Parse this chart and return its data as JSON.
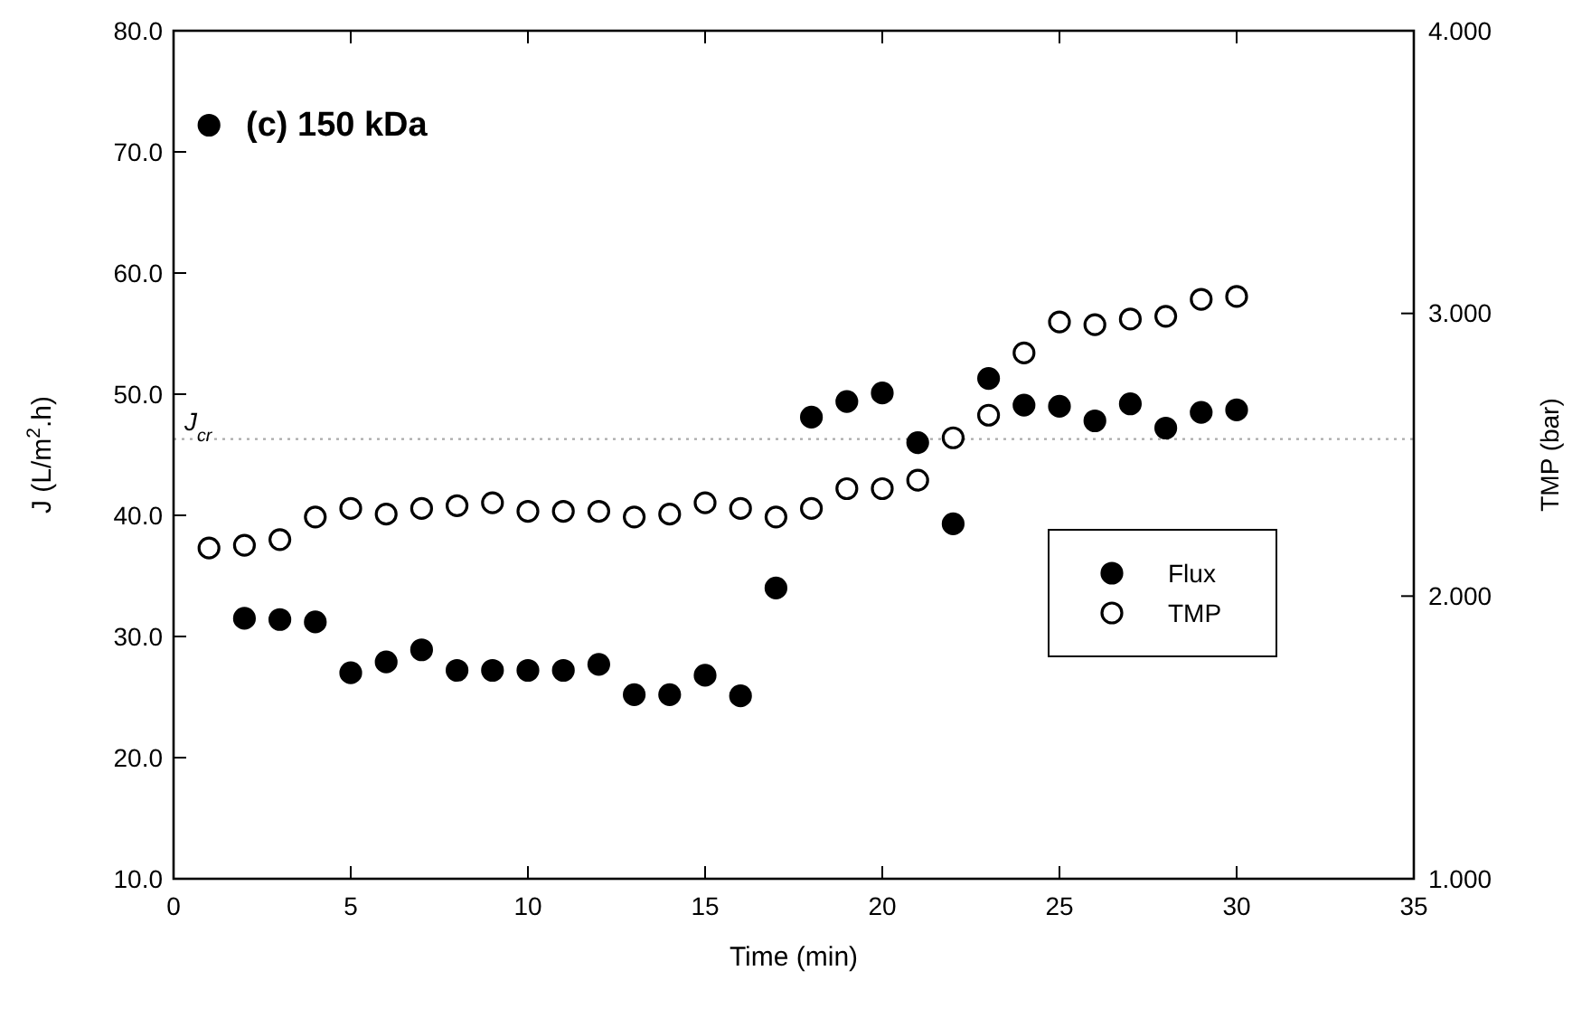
{
  "chart_data": {
    "type": "scatter",
    "xlabel": "Time (min)",
    "ylabel": "J (L/m$^{2}$.h)",
    "y2label": "TMP (bar)",
    "annotations": [
      "(c) 150 kDa"
    ],
    "x": [
      1,
      2,
      3,
      4,
      5,
      6,
      7,
      8,
      9,
      10,
      11,
      12,
      13,
      14,
      15,
      16,
      17,
      18,
      19,
      20,
      21,
      22,
      23,
      24,
      25,
      26,
      27,
      28,
      29,
      30
    ],
    "series": [
      {
        "name": "Flux",
        "color": "#000000",
        "values": [
          72.2,
          31.5,
          31.4,
          31.2,
          27.0,
          27.9,
          28.9,
          27.2,
          27.2,
          27.2,
          27.2,
          27.7,
          25.2,
          25.2,
          26.8,
          25.1,
          34.0,
          48.1,
          49.4,
          50.1,
          46.0,
          39.3,
          51.3,
          49.1,
          49.0,
          47.8,
          49.2,
          47.2,
          48.5,
          48.7
        ]
      },
      {
        "name": "TMP",
        "color": "#ffffff",
        "axis": "y2",
        "values": [
          2.17,
          2.18,
          2.2,
          2.28,
          2.31,
          2.29,
          2.31,
          2.32,
          2.33,
          2.3,
          2.3,
          2.3,
          2.28,
          2.29,
          2.33,
          2.31,
          2.28,
          2.31,
          2.38,
          2.38,
          2.41,
          2.56,
          2.64,
          2.86,
          2.97,
          2.96,
          2.98,
          2.99,
          3.05,
          3.06
        ]
      }
    ],
    "xlim": [
      0,
      35
    ],
    "xticks": [
      0,
      5,
      10,
      15,
      20,
      25,
      30,
      35
    ],
    "ylim": [
      10,
      80
    ],
    "yticks": [
      {
        "value": 10,
        "label": "10.0"
      },
      {
        "value": 20,
        "label": "20.0"
      },
      {
        "value": 30,
        "label": "30.0"
      },
      {
        "value": 40,
        "label": "40.0"
      },
      {
        "value": 50,
        "label": "50.0"
      },
      {
        "value": 60,
        "label": "60.0"
      },
      {
        "value": 70,
        "label": "70.0"
      },
      {
        "value": 80,
        "label": "80.0"
      }
    ],
    "y2lim": [
      1,
      4
    ],
    "y2ticks": [
      {
        "value": 1,
        "label": "1.000"
      },
      {
        "value": 2,
        "label": "2.000"
      },
      {
        "value": 3,
        "label": "3.000"
      },
      {
        "value": 4,
        "label": "4.000"
      }
    ],
    "ref_lines": [
      {
        "axis": "y",
        "value": 46.3,
        "label": "J$_{cr}$",
        "color": "#aaaaaa",
        "line_style": "dotted"
      }
    ],
    "marker": "circle",
    "legend": "right",
    "grid": false
  }
}
